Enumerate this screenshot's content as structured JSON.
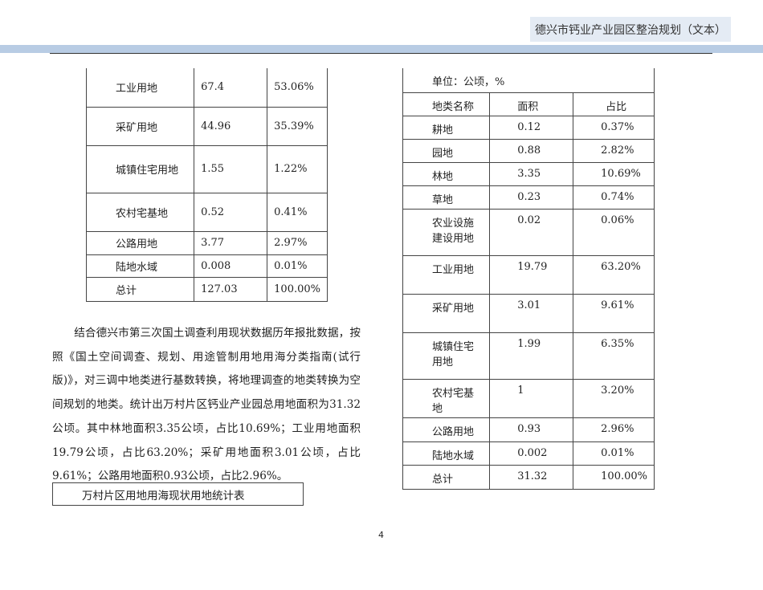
{
  "header": {
    "title": "德兴市钙业产业园区整治规划（文本）"
  },
  "left_table": {
    "rows": [
      [
        "工业用地",
        "67.4",
        "53.06%"
      ],
      [
        "采矿用地",
        "44.96",
        "35.39%"
      ],
      [
        "城镇住宅用地",
        "1.55",
        "1.22%"
      ],
      [
        "农村宅基地",
        "0.52",
        "0.41%"
      ],
      [
        "公路用地",
        "3.77",
        "2.97%"
      ],
      [
        "陆地水域",
        "0.008",
        "0.01%"
      ],
      [
        "总计",
        "127.03",
        "100.00%"
      ]
    ]
  },
  "paragraph": "结合德兴市第三次国土调查利用现状数据历年报批数据，按照《国土空间调查、规划、用途管制用地用海分类指南(试行版)》，对三调中地类进行基数转换，将地理调查的地类转换为空间规划的地类。统计出万村片区钙业产业园总用地面积为31.32公顷。其中林地面积3.35公顷，占比10.69%；工业用地面积19.79公顷，占比63.20%；采矿用地面积3.01公顷，占比9.61%；公路用地面积0.93公顷，占比2.96%。",
  "caption": "万村片区用地用海现状用地统计表",
  "right_table": {
    "unit": "单位：公顷，%",
    "headers": [
      "地类名称",
      "面积",
      "占比"
    ],
    "rows": [
      [
        "耕地",
        "0.12",
        "0.37%"
      ],
      [
        "园地",
        "0.88",
        "2.82%"
      ],
      [
        "林地",
        "3.35",
        "10.69%"
      ],
      [
        "草地",
        "0.23",
        "0.74%"
      ],
      [
        "农业设施建设用地",
        "0.02",
        "0.06%"
      ],
      [
        "工业用地",
        "19.79",
        "63.20%"
      ],
      [
        "采矿用地",
        "3.01",
        "9.61%"
      ],
      [
        "城镇住宅用地",
        "1.99",
        "6.35%"
      ],
      [
        "农村宅基地",
        "1",
        "3.20%"
      ],
      [
        "公路用地",
        "0.93",
        "2.96%"
      ],
      [
        "陆地水域",
        "0.002",
        "0.01%"
      ],
      [
        "总计",
        "31.32",
        "100.00%"
      ]
    ]
  },
  "page_number": "4"
}
